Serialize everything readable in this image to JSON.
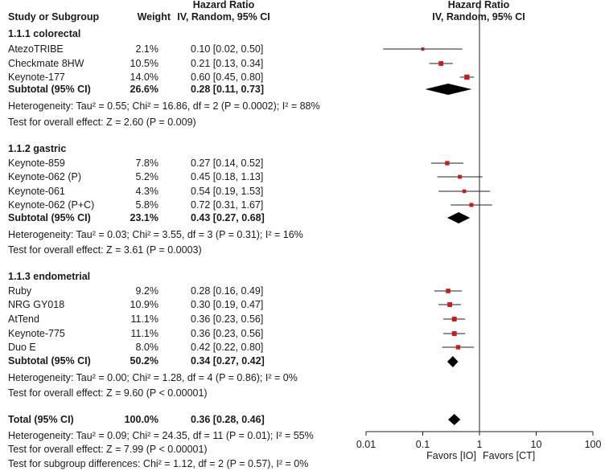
{
  "header": {
    "hr_top": "Hazard Ratio",
    "hr_top_plot": "Hazard Ratio",
    "study": "Study or Subgroup",
    "weight": "Weight",
    "method": "IV, Random, 95% CI",
    "method_plot": "IV, Random, 95% CI"
  },
  "chart_data": {
    "type": "forest",
    "scale": "log",
    "xlim": [
      0.01,
      100
    ],
    "x_ticks": [
      "0.01",
      "0.1",
      "1",
      "10",
      "100"
    ],
    "x_tick_values": [
      0.01,
      0.1,
      1,
      10,
      100
    ],
    "favors_left": "Favors [IO]",
    "favors_right": "Favors [CT]",
    "groups": [
      {
        "title": "1.1.1 colorectal",
        "studies": [
          {
            "name": "AtezoTRIBE",
            "weight": "2.1%",
            "ci_text": "0.10 [0.02, 0.50]",
            "hr": 0.1,
            "lo": 0.02,
            "hi": 0.5,
            "w": 2.1
          },
          {
            "name": "Checkmate 8HW",
            "weight": "10.5%",
            "ci_text": "0.21 [0.13, 0.34]",
            "hr": 0.21,
            "lo": 0.13,
            "hi": 0.34,
            "w": 10.5
          },
          {
            "name": "Keynote-177",
            "weight": "14.0%",
            "ci_text": "0.60 [0.45, 0.80]",
            "hr": 0.6,
            "lo": 0.45,
            "hi": 0.8,
            "w": 14.0
          }
        ],
        "subtotal": {
          "label": "Subtotal (95% CI)",
          "weight": "26.6%",
          "ci_text": "0.28 [0.11, 0.73]",
          "hr": 0.28,
          "lo": 0.11,
          "hi": 0.73
        },
        "heterogeneity": "Heterogeneity: Tau² = 0.55; Chi² = 16.86, df = 2 (P = 0.0002); I² = 88%",
        "overall": "Test for overall effect: Z = 2.60 (P = 0.009)"
      },
      {
        "title": "1.1.2 gastric",
        "studies": [
          {
            "name": "Keynote-859",
            "weight": "7.8%",
            "ci_text": "0.27 [0.14, 0.52]",
            "hr": 0.27,
            "lo": 0.14,
            "hi": 0.52,
            "w": 7.8
          },
          {
            "name": "Keynote-062 (P)",
            "weight": "5.2%",
            "ci_text": "0.45 [0.18, 1.13]",
            "hr": 0.45,
            "lo": 0.18,
            "hi": 1.13,
            "w": 5.2
          },
          {
            "name": "Keynote-061",
            "weight": "4.3%",
            "ci_text": "0.54 [0.19, 1.53]",
            "hr": 0.54,
            "lo": 0.19,
            "hi": 1.53,
            "w": 4.3
          },
          {
            "name": "Keynote-062 (P+C)",
            "weight": "5.8%",
            "ci_text": "0.72 [0.31, 1.67]",
            "hr": 0.72,
            "lo": 0.31,
            "hi": 1.67,
            "w": 5.8
          }
        ],
        "subtotal": {
          "label": "Subtotal (95% CI)",
          "weight": "23.1%",
          "ci_text": "0.43 [0.27, 0.68]",
          "hr": 0.43,
          "lo": 0.27,
          "hi": 0.68
        },
        "heterogeneity": "Heterogeneity: Tau² = 0.03; Chi² = 3.55, df = 3 (P = 0.31); I² = 16%",
        "overall": "Test for overall effect: Z = 3.61 (P = 0.0003)"
      },
      {
        "title": "1.1.3 endometrial",
        "studies": [
          {
            "name": "Ruby",
            "weight": "9.2%",
            "ci_text": "0.28 [0.16, 0.49]",
            "hr": 0.28,
            "lo": 0.16,
            "hi": 0.49,
            "w": 9.2
          },
          {
            "name": "NRG GY018",
            "weight": "10.9%",
            "ci_text": "0.30 [0.19, 0.47]",
            "hr": 0.3,
            "lo": 0.19,
            "hi": 0.47,
            "w": 10.9
          },
          {
            "name": "AtTend",
            "weight": "11.1%",
            "ci_text": "0.36 [0.23, 0.56]",
            "hr": 0.36,
            "lo": 0.23,
            "hi": 0.56,
            "w": 11.1
          },
          {
            "name": "Keynote-775",
            "weight": "11.1%",
            "ci_text": "0.36 [0.23, 0.56]",
            "hr": 0.36,
            "lo": 0.23,
            "hi": 0.56,
            "w": 11.1
          },
          {
            "name": "Duo E",
            "weight": "8.0%",
            "ci_text": "0.42 [0.22, 0.80]",
            "hr": 0.42,
            "lo": 0.22,
            "hi": 0.8,
            "w": 8.0
          }
        ],
        "subtotal": {
          "label": "Subtotal (95% CI)",
          "weight": "50.2%",
          "ci_text": "0.34 [0.27, 0.42]",
          "hr": 0.34,
          "lo": 0.27,
          "hi": 0.42
        },
        "heterogeneity": "Heterogeneity: Tau² = 0.00; Chi² = 1.28, df = 4 (P = 0.86); I² = 0%",
        "overall": "Test for overall effect: Z = 9.60 (P < 0.00001)"
      }
    ],
    "total": {
      "label": "Total (95% CI)",
      "weight": "100.0%",
      "ci_text": "0.36 [0.28, 0.46]",
      "hr": 0.36,
      "lo": 0.28,
      "hi": 0.46,
      "heterogeneity": "Heterogeneity: Tau² = 0.09; Chi² = 24.35, df = 11 (P = 0.01); I² = 55%",
      "overall": "Test for overall effect: Z = 7.99 (P < 0.00001)",
      "subgroup_diff": "Test for subgroup differences: Chi² = 1.12, df = 2 (P = 0.57), I² = 0%"
    },
    "colors": {
      "square": "#cc1a1a",
      "diamond": "#000000",
      "line": "#222222"
    }
  }
}
